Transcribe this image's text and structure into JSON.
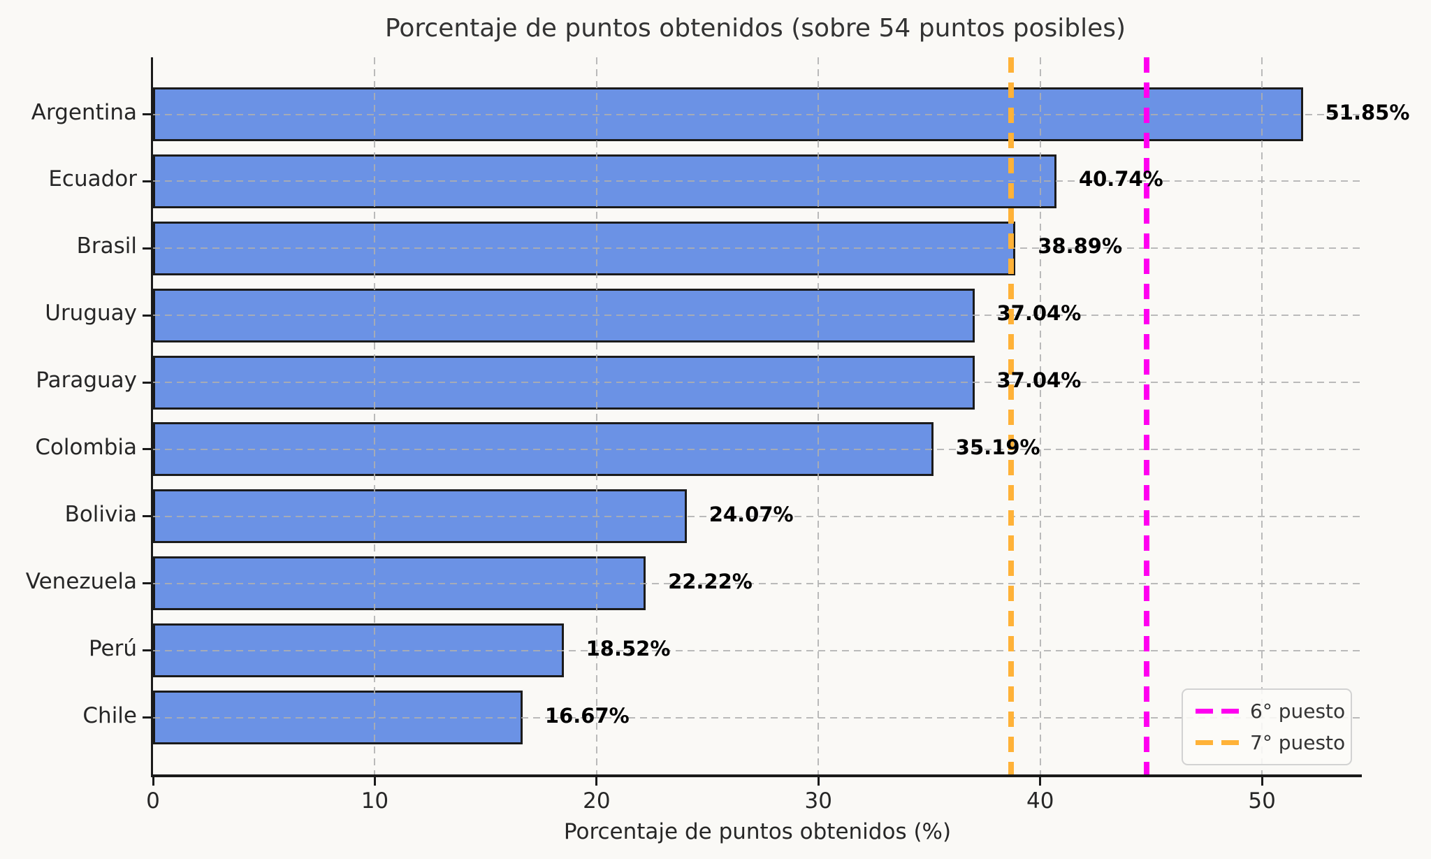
{
  "title": "Porcentaje de puntos obtenidos (sobre 54 puntos posibles)",
  "chart_data": {
    "type": "bar",
    "orientation": "horizontal",
    "title": "Porcentaje de puntos obtenidos (sobre 54 puntos posibles)",
    "xlabel": "Porcentaje de puntos obtenidos (%)",
    "ylabel": "",
    "categories": [
      "Argentina",
      "Ecuador",
      "Brasil",
      "Uruguay",
      "Paraguay",
      "Colombia",
      "Bolivia",
      "Venezuela",
      "Perú",
      "Chile"
    ],
    "values": [
      51.85,
      40.74,
      38.89,
      37.04,
      37.04,
      35.19,
      24.07,
      22.22,
      18.52,
      16.67
    ],
    "value_labels": [
      "51.85%",
      "40.74%",
      "38.89%",
      "37.04%",
      "37.04%",
      "35.19%",
      "24.07%",
      "22.22%",
      "18.52%",
      "16.67%"
    ],
    "xlim": [
      0,
      54.5
    ],
    "xticks": [
      0,
      10,
      20,
      30,
      40,
      50
    ],
    "grid": true,
    "bar_color": "#6b92e5",
    "bar_edge_color": "#1b1b1b",
    "reference_lines": [
      {
        "label": "6° puesto",
        "value": 44.8,
        "color": "#ff00f0",
        "style": "dashed"
      },
      {
        "label": "7° puesto",
        "value": 38.7,
        "color": "#ffb238",
        "style": "dashed"
      }
    ],
    "legend_position": "lower right"
  },
  "colors": {
    "background": "#faf9f6",
    "bar": "#6b92e5",
    "bar_edge": "#1b1b1b",
    "line_6": "#ff00f0",
    "line_7": "#ffb238",
    "grid": "#afafaf",
    "text": "#262626"
  }
}
